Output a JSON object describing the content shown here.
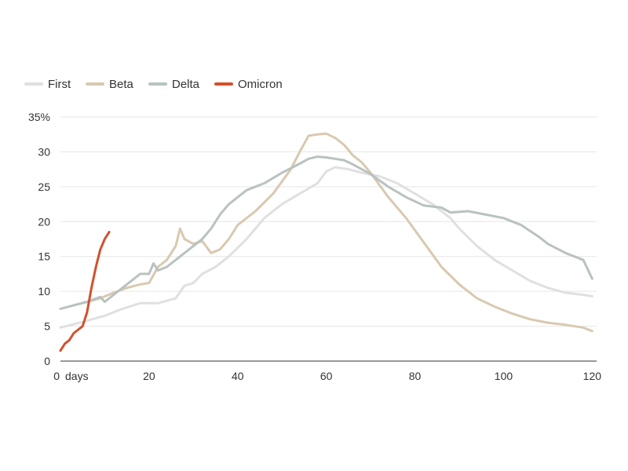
{
  "chart_data": {
    "type": "line",
    "title": "",
    "xlabel": "",
    "ylabel": "",
    "x_unit_label": "days",
    "y_unit_suffix": "%",
    "xlim": [
      0,
      121
    ],
    "ylim": [
      0,
      35
    ],
    "x_ticks": [
      0,
      20,
      40,
      60,
      80,
      100,
      120
    ],
    "y_ticks": [
      0,
      5,
      10,
      15,
      20,
      25,
      30,
      35
    ],
    "grid": true,
    "legend_position": "top-left",
    "series": [
      {
        "name": "First",
        "color": "#e0e0e0",
        "stroke_width": 3,
        "x": [
          0,
          5,
          10,
          14,
          18,
          22,
          26,
          28,
          30,
          32,
          35,
          38,
          42,
          46,
          50,
          54,
          58,
          60,
          62,
          65,
          68,
          72,
          76,
          80,
          84,
          88,
          90,
          94,
          98,
          102,
          106,
          110,
          114,
          118,
          120
        ],
        "y": [
          4.8,
          5.6,
          6.5,
          7.5,
          8.3,
          8.3,
          9.0,
          10.8,
          11.2,
          12.5,
          13.5,
          15.0,
          17.5,
          20.5,
          22.5,
          24.0,
          25.5,
          27.2,
          27.8,
          27.5,
          27.0,
          26.5,
          25.5,
          24.0,
          22.5,
          20.5,
          19.0,
          16.5,
          14.5,
          13.0,
          11.5,
          10.5,
          9.8,
          9.5,
          9.3
        ]
      },
      {
        "name": "Beta",
        "color": "#d8c9b0",
        "stroke_width": 3,
        "x": [
          3,
          6,
          9,
          12,
          15,
          18,
          20,
          22,
          24,
          26,
          27,
          28,
          30,
          32,
          34,
          36,
          38,
          40,
          44,
          48,
          52,
          54,
          56,
          58,
          60,
          62,
          64,
          66,
          68,
          70,
          74,
          78,
          82,
          86,
          90,
          94,
          98,
          102,
          106,
          110,
          114,
          118,
          120
        ],
        "y": [
          8.0,
          8.5,
          9.0,
          9.8,
          10.5,
          11.0,
          11.2,
          13.5,
          14.5,
          16.5,
          19.0,
          17.5,
          16.8,
          17.2,
          15.5,
          16.0,
          17.5,
          19.5,
          21.5,
          24.0,
          27.5,
          30.0,
          32.3,
          32.5,
          32.6,
          32.0,
          31.0,
          29.5,
          28.5,
          27.0,
          23.5,
          20.5,
          17.0,
          13.5,
          11.0,
          9.0,
          7.8,
          6.8,
          6.0,
          5.5,
          5.2,
          4.8,
          4.3
        ]
      },
      {
        "name": "Delta",
        "color": "#b9c2bf",
        "stroke_width": 3,
        "x": [
          0,
          3,
          6,
          9,
          10,
          12,
          14,
          16,
          18,
          20,
          21,
          22,
          24,
          26,
          28,
          30,
          32,
          34,
          36,
          38,
          40,
          42,
          46,
          50,
          54,
          56,
          58,
          60,
          62,
          64,
          66,
          68,
          70,
          74,
          78,
          82,
          86,
          88,
          92,
          96,
          100,
          104,
          108,
          110,
          114,
          118,
          120
        ],
        "y": [
          7.5,
          8.0,
          8.5,
          9.2,
          8.5,
          9.5,
          10.5,
          11.5,
          12.5,
          12.5,
          14.0,
          13.0,
          13.5,
          14.5,
          15.5,
          16.5,
          17.5,
          19.0,
          21.0,
          22.5,
          23.5,
          24.5,
          25.5,
          27.0,
          28.3,
          29.0,
          29.3,
          29.2,
          29.0,
          28.8,
          28.2,
          27.5,
          26.8,
          25.0,
          23.5,
          22.3,
          22.0,
          21.3,
          21.5,
          21.0,
          20.5,
          19.5,
          17.8,
          16.8,
          15.5,
          14.5,
          11.8
        ]
      },
      {
        "name": "Omicron",
        "color": "#d2512e",
        "stroke_width": 3,
        "x": [
          0,
          1,
          2,
          3,
          4,
          5,
          6,
          7,
          8,
          9,
          10,
          11
        ],
        "y": [
          1.5,
          2.5,
          3.0,
          4.0,
          4.5,
          5.0,
          7.0,
          10.5,
          13.5,
          16.0,
          17.5,
          18.5
        ]
      }
    ]
  }
}
